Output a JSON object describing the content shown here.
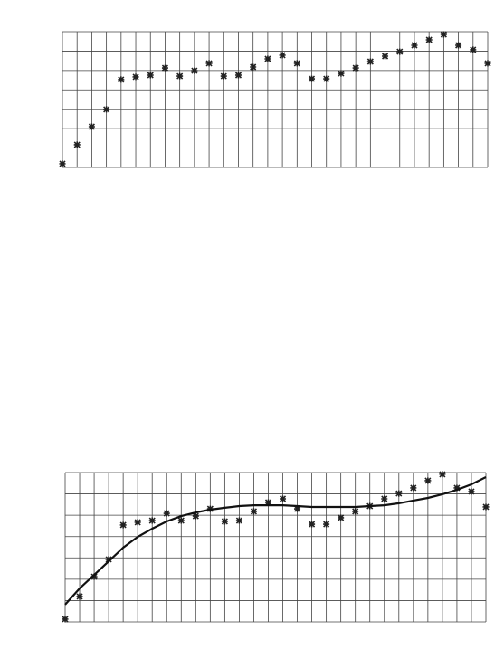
{
  "chart_data": [
    {
      "type": "scatter",
      "x": [
        0,
        1,
        2,
        3,
        4,
        5,
        6,
        7,
        8,
        9,
        10,
        11,
        12,
        13,
        14,
        15,
        16,
        17,
        18,
        19,
        20,
        21,
        22,
        23,
        24,
        25,
        26,
        27,
        28,
        29
      ],
      "series": [
        {
          "mode": "markers",
          "color": "#222222",
          "values": [
            0.19,
            1.17,
            2.1,
            2.99,
            4.53,
            4.67,
            4.76,
            5.13,
            4.71,
            4.99,
            5.37,
            4.71,
            4.76,
            5.18,
            5.6,
            5.79,
            5.37,
            4.57,
            4.57,
            4.85,
            5.13,
            5.46,
            5.74,
            5.97,
            6.3,
            6.58,
            6.86,
            6.3,
            6.07,
            5.37
          ]
        }
      ],
      "xlim": [
        0,
        29
      ],
      "ylim": [
        0,
        7
      ],
      "xticks": [
        0,
        1,
        2,
        3,
        4,
        5,
        6,
        7,
        8,
        9,
        10,
        11,
        12,
        13,
        14,
        15,
        16,
        17,
        18,
        19,
        20,
        21,
        22,
        23,
        24,
        25,
        26,
        27,
        28,
        29
      ],
      "yticks": [
        0,
        1,
        2,
        3,
        4,
        5,
        6,
        7
      ],
      "grid": true
    },
    {
      "type": "scatter",
      "x": [
        0,
        1,
        2,
        3,
        4,
        5,
        6,
        7,
        8,
        9,
        10,
        11,
        12,
        13,
        14,
        15,
        16,
        17,
        18,
        19,
        20,
        21,
        22,
        23,
        24,
        25,
        26,
        27,
        28,
        29
      ],
      "series": [
        {
          "mode": "markers",
          "color": "#222222",
          "values": [
            0.13,
            1.19,
            2.12,
            2.93,
            4.54,
            4.67,
            4.75,
            5.09,
            4.75,
            4.96,
            5.3,
            4.71,
            4.75,
            5.18,
            5.6,
            5.77,
            5.3,
            4.58,
            4.58,
            4.88,
            5.18,
            5.43,
            5.77,
            6.02,
            6.28,
            6.62,
            6.92,
            6.28,
            6.11,
            5.39
          ]
        },
        {
          "mode": "line",
          "color": "#111111",
          "values": [
            0.81,
            1.57,
            2.2,
            2.84,
            3.48,
            3.99,
            4.37,
            4.71,
            4.96,
            5.13,
            5.26,
            5.35,
            5.43,
            5.47,
            5.47,
            5.47,
            5.43,
            5.39,
            5.39,
            5.39,
            5.39,
            5.43,
            5.47,
            5.56,
            5.69,
            5.81,
            5.98,
            6.19,
            6.45,
            6.79
          ]
        }
      ],
      "xlim": [
        0,
        29
      ],
      "ylim": [
        0,
        7
      ],
      "xticks": [
        0,
        1,
        2,
        3,
        4,
        5,
        6,
        7,
        8,
        9,
        10,
        11,
        12,
        13,
        14,
        15,
        16,
        17,
        18,
        19,
        20,
        21,
        22,
        23,
        24,
        25,
        26,
        27,
        28,
        29
      ],
      "yticks": [
        0,
        1,
        2,
        3,
        4,
        5,
        6,
        7
      ],
      "grid": true
    }
  ]
}
